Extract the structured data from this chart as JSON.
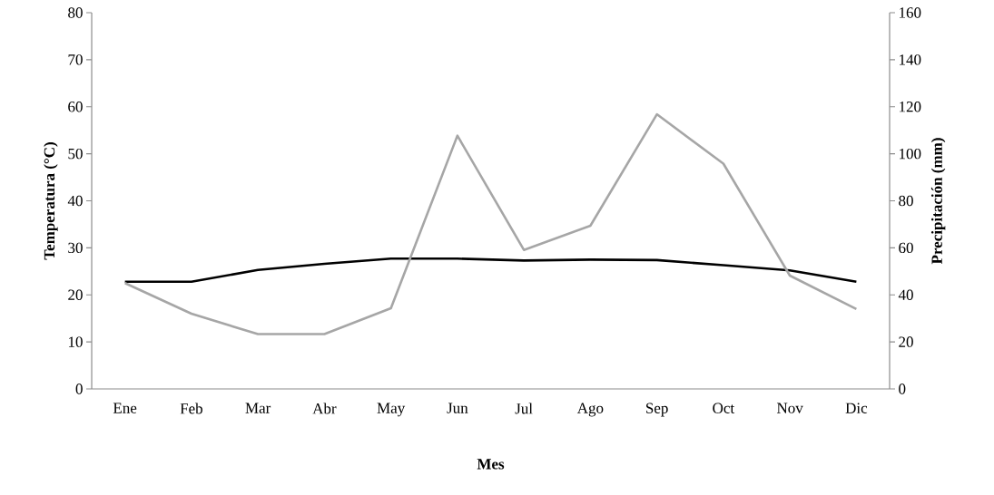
{
  "chart_data": {
    "type": "line",
    "xlabel": "Mes",
    "ylabel": "Temperatura (°C)",
    "y2label": "Precipitación (mm)",
    "categories": [
      "Ene",
      "Feb",
      "Mar",
      "Abr",
      "May",
      "Jun",
      "Jul",
      "Ago",
      "Sep",
      "Oct",
      "Nov",
      "Dic"
    ],
    "series": [
      {
        "color": "#000000",
        "axis": "y",
        "values": [
          22.8,
          22.8,
          25.3,
          26.6,
          27.7,
          27.7,
          27.3,
          27.5,
          27.4,
          26.3,
          25.2,
          22.8
        ]
      },
      {
        "color": "#a6a6a6",
        "axis": "y2",
        "values": [
          45,
          32,
          23.3,
          23.3,
          34.3,
          107.7,
          59.1,
          69.4,
          116.8,
          95.8,
          48.2,
          34
        ]
      }
    ],
    "ylim": [
      0,
      80
    ],
    "yticks": [
      0,
      10,
      20,
      30,
      40,
      50,
      60,
      70,
      80
    ],
    "y2lim": [
      0,
      160
    ],
    "y2ticks": [
      0,
      20,
      40,
      60,
      80,
      100,
      120,
      140,
      160
    ]
  }
}
